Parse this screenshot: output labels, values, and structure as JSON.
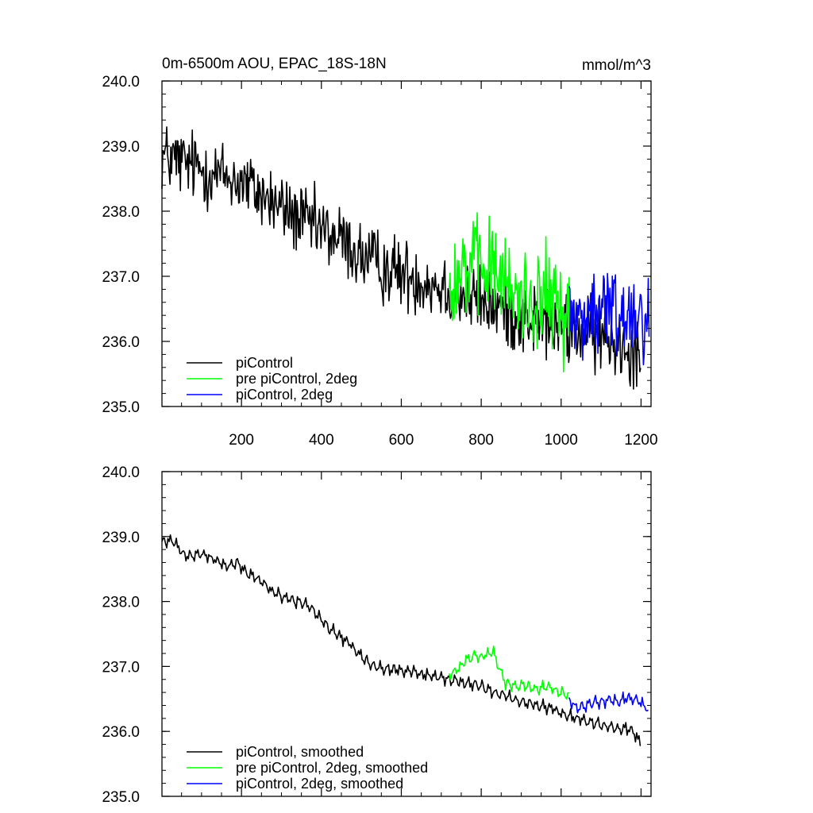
{
  "chart_data": [
    {
      "type": "line",
      "title": "0m-6500m AOU, EPAC_18S-18N",
      "units": "mmol/m^3",
      "xlabel": "",
      "ylabel": "",
      "xlim": [
        1,
        1225
      ],
      "ylim": [
        235.0,
        240.0
      ],
      "x_ticks": [
        200,
        400,
        600,
        800,
        1000,
        1200
      ],
      "y_ticks": [
        "235.0",
        "236.0",
        "237.0",
        "238.0",
        "239.0",
        "240.0"
      ],
      "legend_position": "bottom-left",
      "noisy": true,
      "series": [
        {
          "name": "piControl",
          "color": "#000000",
          "x": [
            1,
            50,
            100,
            150,
            200,
            250,
            300,
            350,
            400,
            450,
            500,
            550,
            600,
            650,
            700,
            750,
            800,
            850,
            900,
            950,
            1000,
            1050,
            1100,
            1150,
            1200
          ],
          "values": [
            238.85,
            238.75,
            238.65,
            238.55,
            238.45,
            238.25,
            238.05,
            237.85,
            237.7,
            237.55,
            237.3,
            237.15,
            237.05,
            236.95,
            236.85,
            236.7,
            236.6,
            236.5,
            236.35,
            236.3,
            236.2,
            236.15,
            236.05,
            236.0,
            235.85
          ]
        },
        {
          "name": "pre piControl, 2deg",
          "color": "#00ff00",
          "x": [
            720,
            740,
            760,
            780,
            800,
            820,
            840,
            860,
            880,
            900,
            920,
            940,
            960,
            980,
            1000,
            1020
          ],
          "values": [
            236.85,
            237.05,
            237.15,
            237.15,
            237.05,
            237.15,
            237.1,
            236.85,
            236.7,
            236.7,
            236.65,
            236.65,
            236.7,
            236.6,
            236.5,
            236.45
          ]
        },
        {
          "name": "piControl, 2deg",
          "color": "#0000ff",
          "x": [
            1020,
            1040,
            1060,
            1080,
            1100,
            1120,
            1140,
            1160,
            1180,
            1200,
            1220
          ],
          "values": [
            236.45,
            236.35,
            236.4,
            236.45,
            236.4,
            236.5,
            236.45,
            236.4,
            236.5,
            236.45,
            236.4
          ]
        }
      ]
    },
    {
      "type": "line",
      "title": "",
      "units": "",
      "xlabel": "",
      "ylabel": "",
      "xlim": [
        1,
        1225
      ],
      "ylim": [
        235.0,
        240.0
      ],
      "x_ticks": [
        200,
        400,
        600,
        800,
        1000,
        1200
      ],
      "x_tick_labels_shown": false,
      "y_ticks": [
        "235.0",
        "236.0",
        "237.0",
        "238.0",
        "239.0",
        "240.0"
      ],
      "legend_position": "bottom-left",
      "noisy": false,
      "series": [
        {
          "name": "piControl, smoothed",
          "color": "#000000",
          "x": [
            1,
            20,
            40,
            60,
            80,
            100,
            130,
            160,
            190,
            210,
            230,
            250,
            280,
            310,
            340,
            370,
            390,
            410,
            440,
            470,
            500,
            530,
            560,
            600,
            640,
            680,
            720,
            760,
            800,
            830,
            860,
            900,
            940,
            980,
            1010,
            1040,
            1070,
            1100,
            1130,
            1160,
            1180,
            1200
          ],
          "values": [
            238.9,
            238.95,
            238.85,
            238.7,
            238.7,
            238.75,
            238.65,
            238.55,
            238.6,
            238.45,
            238.4,
            238.3,
            238.15,
            238.05,
            238.0,
            237.95,
            237.8,
            237.65,
            237.5,
            237.35,
            237.15,
            237.0,
            236.95,
            236.95,
            236.9,
            236.85,
            236.8,
            236.75,
            236.7,
            236.6,
            236.55,
            236.45,
            236.4,
            236.35,
            236.25,
            236.2,
            236.15,
            236.1,
            236.05,
            236.05,
            236.0,
            235.8
          ]
        },
        {
          "name": "pre piControl, 2deg, smoothed",
          "color": "#00ff00",
          "x": [
            720,
            740,
            760,
            780,
            800,
            820,
            830,
            840,
            860,
            880,
            900,
            920,
            940,
            960,
            980,
            1000,
            1020
          ],
          "values": [
            236.85,
            236.95,
            237.1,
            237.15,
            237.15,
            237.2,
            237.25,
            237.05,
            236.75,
            236.7,
            236.7,
            236.7,
            236.65,
            236.7,
            236.65,
            236.6,
            236.55
          ]
        },
        {
          "name": "piControl, 2deg, smoothed",
          "color": "#0000ff",
          "x": [
            1020,
            1040,
            1060,
            1080,
            1100,
            1120,
            1140,
            1160,
            1180,
            1200,
            1220
          ],
          "values": [
            236.5,
            236.35,
            236.4,
            236.45,
            236.45,
            236.5,
            236.45,
            236.5,
            236.5,
            236.45,
            236.3
          ]
        }
      ]
    }
  ]
}
